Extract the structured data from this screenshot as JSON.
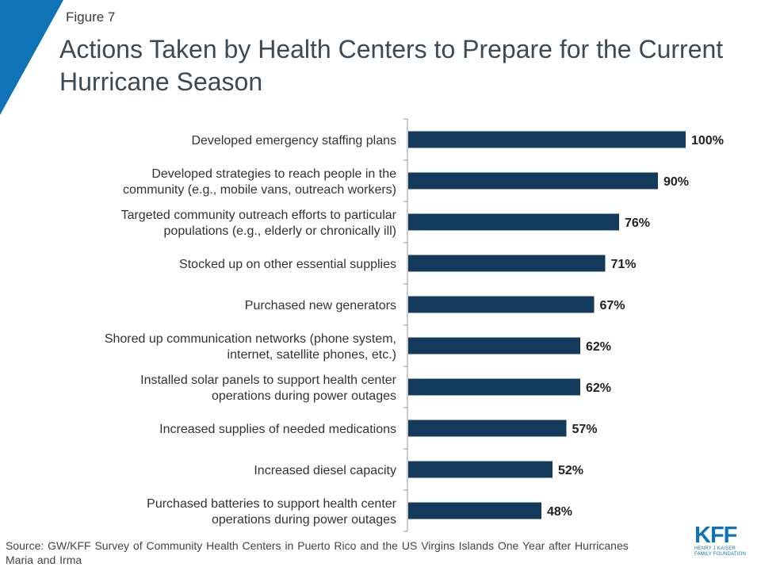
{
  "figure_label": "Figure 7",
  "title": "Actions Taken by Health Centers to Prepare for the Current Hurricane Season",
  "colors": {
    "bar": "#153b5c",
    "accent": "#1073b8",
    "text": "#333333"
  },
  "chart_data": {
    "type": "bar",
    "orientation": "horizontal",
    "categories": [
      [
        "Developed emergency staffing plans"
      ],
      [
        "Developed strategies to reach people in the",
        "community (e.g., mobile vans, outreach workers)"
      ],
      [
        "Targeted community outreach efforts to particular",
        "populations (e.g., elderly or chronically ill)"
      ],
      [
        "Stocked up on other essential supplies"
      ],
      [
        "Purchased new generators"
      ],
      [
        "Shored up communication networks (phone system,",
        "internet, satellite phones, etc.)"
      ],
      [
        "Installed solar panels to support health center",
        "operations during power outages"
      ],
      [
        "Increased supplies of needed medications"
      ],
      [
        "Increased diesel capacity"
      ],
      [
        "Purchased batteries to support health center",
        "operations during power outages"
      ]
    ],
    "values": [
      100,
      90,
      76,
      71,
      67,
      62,
      62,
      57,
      52,
      48
    ],
    "data_labels": [
      "100%",
      "90%",
      "76%",
      "71%",
      "67%",
      "62%",
      "62%",
      "57%",
      "52%",
      "48%"
    ],
    "xlim": [
      0,
      100
    ]
  },
  "source": "Source: GW/KFF Survey of Community Health Centers in Puerto Rico and the US Virgins Islands One Year after Hurricanes Maria and Irma",
  "logo": {
    "mark": "KFF",
    "line1": "HENRY J KAISER",
    "line2": "FAMILY FOUNDATION"
  }
}
